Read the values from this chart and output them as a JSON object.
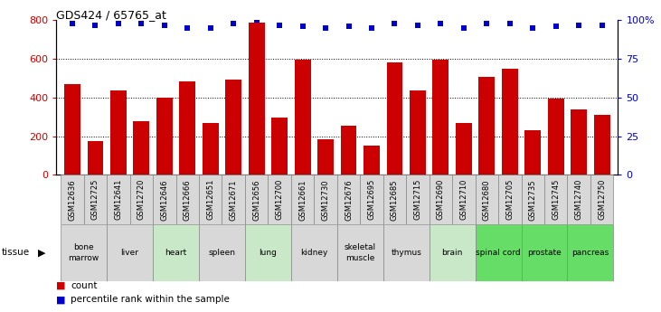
{
  "title": "GDS424 / 65765_at",
  "samples": [
    "GSM12636",
    "GSM12725",
    "GSM12641",
    "GSM12720",
    "GSM12646",
    "GSM12666",
    "GSM12651",
    "GSM12671",
    "GSM12656",
    "GSM12700",
    "GSM12661",
    "GSM12730",
    "GSM12676",
    "GSM12695",
    "GSM12685",
    "GSM12715",
    "GSM12690",
    "GSM12710",
    "GSM12680",
    "GSM12705",
    "GSM12735",
    "GSM12745",
    "GSM12740",
    "GSM12750"
  ],
  "counts": [
    470,
    175,
    435,
    275,
    400,
    485,
    270,
    495,
    790,
    295,
    595,
    185,
    255,
    150,
    580,
    435,
    595,
    270,
    505,
    550,
    230,
    395,
    340,
    310
  ],
  "percentiles": [
    98,
    97,
    98,
    98,
    97,
    95,
    95,
    98,
    100,
    97,
    96,
    95,
    96,
    95,
    98,
    97,
    98,
    95,
    98,
    98,
    95,
    96,
    97,
    97
  ],
  "tissues": [
    {
      "name": "bone\nmarrow",
      "start": 0,
      "end": 2,
      "color": "#d8d8d8"
    },
    {
      "name": "liver",
      "start": 2,
      "end": 4,
      "color": "#d8d8d8"
    },
    {
      "name": "heart",
      "start": 4,
      "end": 6,
      "color": "#c8e8c8"
    },
    {
      "name": "spleen",
      "start": 6,
      "end": 8,
      "color": "#d8d8d8"
    },
    {
      "name": "lung",
      "start": 8,
      "end": 10,
      "color": "#c8e8c8"
    },
    {
      "name": "kidney",
      "start": 10,
      "end": 12,
      "color": "#d8d8d8"
    },
    {
      "name": "skeletal\nmuscle",
      "start": 12,
      "end": 14,
      "color": "#d8d8d8"
    },
    {
      "name": "thymus",
      "start": 14,
      "end": 16,
      "color": "#d8d8d8"
    },
    {
      "name": "brain",
      "start": 16,
      "end": 18,
      "color": "#c8e8c8"
    },
    {
      "name": "spinal cord",
      "start": 18,
      "end": 20,
      "color": "#66dd66"
    },
    {
      "name": "prostate",
      "start": 20,
      "end": 22,
      "color": "#66dd66"
    },
    {
      "name": "pancreas",
      "start": 22,
      "end": 24,
      "color": "#66dd66"
    }
  ],
  "bar_color": "#cc0000",
  "dot_color": "#0000cc",
  "ylim_left": [
    0,
    800
  ],
  "ylim_right": [
    0,
    100
  ],
  "yticks_left": [
    0,
    200,
    400,
    600,
    800
  ],
  "yticks_right": [
    0,
    25,
    50,
    75,
    100
  ],
  "sample_box_color": "#d8d8d8",
  "sample_box_edge": "#888888"
}
